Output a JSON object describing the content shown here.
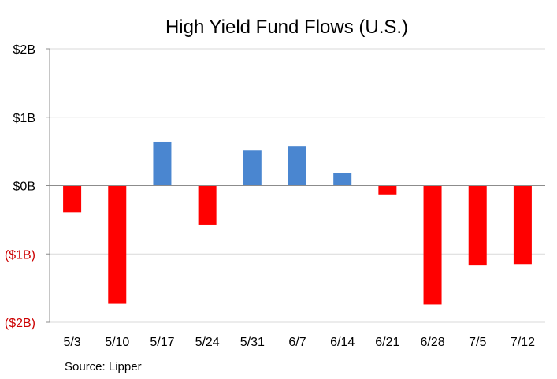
{
  "chart_data": {
    "type": "bar",
    "title": "High Yield Fund Flows (U.S.)",
    "xlabel": "",
    "ylabel": "",
    "categories": [
      "5/3",
      "5/10",
      "5/17",
      "5/24",
      "5/31",
      "6/7",
      "6/14",
      "6/21",
      "6/28",
      "7/5",
      "7/12"
    ],
    "values": [
      -0.39,
      -1.73,
      0.64,
      -0.57,
      0.51,
      0.58,
      0.19,
      -0.13,
      -1.74,
      -1.16,
      -1.15
    ],
    "ylim": [
      -2,
      2
    ],
    "yticks": [
      {
        "value": 2,
        "label": "$2B"
      },
      {
        "value": 1,
        "label": "$1B"
      },
      {
        "value": 0,
        "label": "$0B"
      },
      {
        "value": -1,
        "label": "($1B)"
      },
      {
        "value": -2,
        "label": "($2B)"
      }
    ],
    "grid": true,
    "legend": "none",
    "source": "Source: Lipper",
    "colors": {
      "positive": "#4a86d0",
      "negative": "#ff0000",
      "positive_tick": "#000000",
      "negative_tick": "#cc0000",
      "grid": "#d9d9d9",
      "axis": "#8c8c8c"
    }
  }
}
